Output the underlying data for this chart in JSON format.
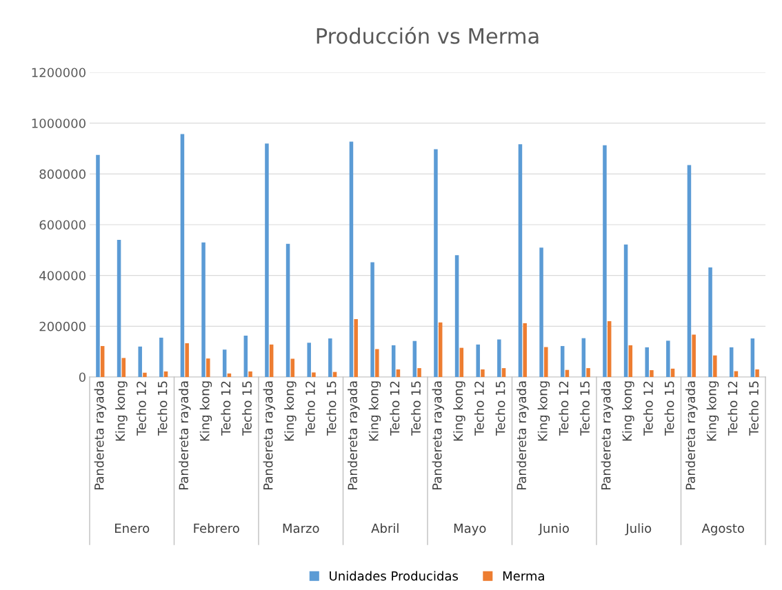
{
  "chart_data": {
    "type": "bar",
    "title": "Producción vs Merma",
    "categories": [
      "Pandereta rayada",
      "King kong",
      "Techo 12",
      "Techo 15",
      "Pandereta rayada",
      "King kong",
      "Techo 12",
      "Techo 15",
      "Pandereta rayada",
      "King kong",
      "Techo 12",
      "Techo 15",
      "Pandereta rayada",
      "King kong",
      "Techo 12",
      "Techo 15",
      "Pandereta rayada",
      "King kong",
      "Techo 12",
      "Techo 15",
      "Pandereta rayada",
      "King kong",
      "Techo 12",
      "Techo 15",
      "Pandereta rayada",
      "King kong",
      "Techo 12",
      "Techo 15",
      "Pandereta rayada",
      "King kong",
      "Techo 12",
      "Techo 15"
    ],
    "series": [
      {
        "name": "Unidades Producidas",
        "color": "#5b9bd5",
        "values": [
          875000,
          540000,
          120000,
          155000,
          957000,
          530000,
          108000,
          163000,
          920000,
          525000,
          135000,
          152000,
          927000,
          452000,
          125000,
          142000,
          897000,
          480000,
          128000,
          148000,
          917000,
          510000,
          122000,
          153000,
          913000,
          522000,
          117000,
          143000,
          835000,
          432000,
          117000,
          152000
        ]
      },
      {
        "name": "Merma",
        "color": "#ed7d31",
        "values": [
          122000,
          75000,
          17000,
          22000,
          133000,
          73000,
          14000,
          22000,
          128000,
          72000,
          18000,
          20000,
          228000,
          110000,
          30000,
          35000,
          215000,
          115000,
          30000,
          35000,
          212000,
          118000,
          28000,
          35000,
          220000,
          125000,
          27000,
          33000,
          167000,
          85000,
          23000,
          30000
        ]
      }
    ],
    "annotations": [
      "Enero",
      "Febrero",
      "Marzo",
      "Abril",
      "Mayo",
      "Junio",
      "Julio",
      "Agosto"
    ],
    "ylim": [
      0,
      1200000
    ],
    "yticks": [
      0,
      200000,
      400000,
      600000,
      800000,
      1000000,
      1200000
    ],
    "grid": "y",
    "legend": "bottom"
  }
}
